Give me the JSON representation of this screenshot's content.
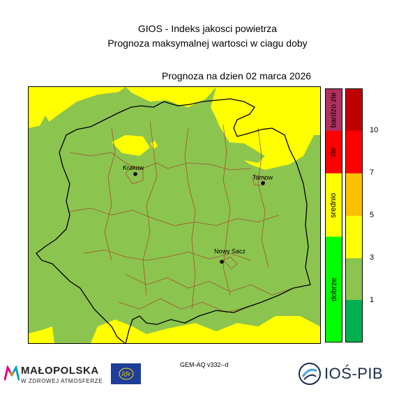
{
  "header": {
    "title": "GIOS - Indeks jakosci powietrza",
    "subtitle": "Prognoza maksymalnej wartosci w ciagu doby",
    "date_line": "Prognoza na dzien  02 marca 2026"
  },
  "map": {
    "colors": {
      "dobrze_fill": "#8cc450",
      "srednio_fill": "#ffff00",
      "district_border": "#a0522d",
      "voivodeship_border": "#000000"
    },
    "cities": [
      {
        "name": "Krakow"
      },
      {
        "name": "Tarnow"
      },
      {
        "name": "Nowy Sacz"
      }
    ]
  },
  "legend": {
    "categories": [
      {
        "label": "bardzo zle",
        "color": "#b03060"
      },
      {
        "label": "zle",
        "color": "#ff0000"
      },
      {
        "label": "srednio",
        "color": "#ffff00"
      },
      {
        "label": "dobrze",
        "color": "#00ff00"
      }
    ],
    "scale": [
      {
        "color": "#c00000"
      },
      {
        "color": "#ff0000"
      },
      {
        "color": "#ffc000"
      },
      {
        "color": "#ffff00"
      },
      {
        "color": "#8cc450"
      },
      {
        "color": "#00b050"
      }
    ],
    "ticks": [
      "10",
      "7",
      "5",
      "3",
      "1"
    ]
  },
  "footer": {
    "model_label": "GEM-AQ v332--d",
    "malopolska_name": "MAŁOPOLSKA",
    "malopolska_tagline": "W ZDROWEJ ATMOSFERZE",
    "life_text": "life",
    "ios_text": "IOŚ-PIB"
  }
}
